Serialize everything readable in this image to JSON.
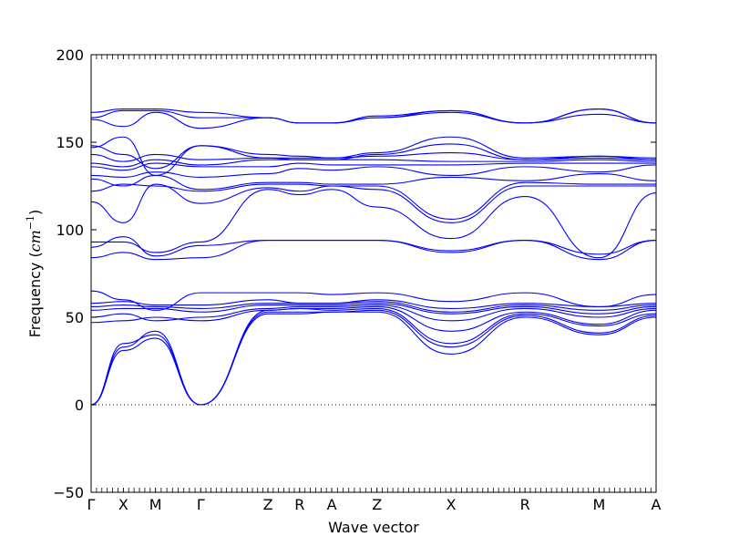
{
  "chart_data": {
    "type": "line",
    "xlabel": "Wave vector",
    "ylabel_text": "Frequency (",
    "ylabel_unit": "cm",
    "ylabel_exp": "−1",
    "ylabel_close": ")",
    "ylim": [
      -50,
      200
    ],
    "yticks": [
      -50,
      0,
      50,
      100,
      150,
      200
    ],
    "xlim": [
      0,
      10
    ],
    "high_symmetry_points": [
      {
        "label": "Γ",
        "x": 0
      },
      {
        "label": "X",
        "x": 0.57
      },
      {
        "label": "M",
        "x": 1.14
      },
      {
        "label": "Γ",
        "x": 1.94
      },
      {
        "label": "Z",
        "x": 3.13
      },
      {
        "label": "R",
        "x": 3.69
      },
      {
        "label": "A",
        "x": 4.26
      },
      {
        "label": "Z",
        "x": 5.06
      },
      {
        "label": "X",
        "x": 6.37
      },
      {
        "label": "R",
        "x": 7.68
      },
      {
        "label": "M",
        "x": 8.99
      },
      {
        "label": "A",
        "x": 10
      }
    ],
    "zero_line": {
      "y": 0,
      "style": "dotted"
    },
    "line_color": "#0000ff",
    "series": [
      {
        "x": [
          0,
          0.57,
          1.14,
          1.94,
          3.13,
          3.69,
          4.26,
          5.06,
          6.37,
          7.68,
          8.99,
          10
        ],
        "values": [
          0,
          35,
          40,
          0,
          52,
          52,
          53,
          53,
          29,
          50,
          40,
          50
        ]
      },
      {
        "x": [
          0,
          0.57,
          1.14,
          1.94,
          3.13,
          3.69,
          4.26,
          5.06,
          6.37,
          7.68,
          8.99,
          10
        ],
        "values": [
          0,
          31,
          38,
          0,
          53,
          53,
          53,
          54,
          33,
          51,
          41,
          51
        ]
      },
      {
        "x": [
          0,
          0.57,
          1.14,
          1.94,
          3.13,
          3.69,
          4.26,
          5.06,
          6.37,
          7.68,
          8.99,
          10
        ],
        "values": [
          0,
          33,
          42,
          0,
          54,
          55,
          54,
          55,
          35,
          52,
          45,
          52
        ]
      },
      {
        "x": [
          0,
          0.57,
          1.14,
          1.94,
          3.13,
          3.69,
          4.26,
          5.06,
          6.37,
          7.68,
          8.99,
          10
        ],
        "values": [
          47,
          48,
          50,
          48,
          54,
          55,
          55,
          56,
          42,
          53,
          46,
          54
        ]
      },
      {
        "x": [
          0,
          0.57,
          1.14,
          1.94,
          3.13,
          3.69,
          4.26,
          5.06,
          6.37,
          7.68,
          8.99,
          10
        ],
        "values": [
          50,
          52,
          48,
          50,
          55,
          56,
          56,
          57,
          48,
          55,
          50,
          55
        ]
      },
      {
        "x": [
          0,
          0.57,
          1.14,
          1.94,
          3.13,
          3.69,
          4.26,
          5.06,
          6.37,
          7.68,
          8.99,
          10
        ],
        "values": [
          54,
          55,
          55,
          53,
          57,
          57,
          57,
          58,
          52,
          56,
          52,
          56
        ]
      },
      {
        "x": [
          0,
          0.57,
          1.14,
          1.94,
          3.13,
          3.69,
          4.26,
          5.06,
          6.37,
          7.68,
          8.99,
          10
        ],
        "values": [
          56,
          57,
          56,
          55,
          58,
          58,
          58,
          59,
          53,
          57,
          54,
          57
        ]
      },
      {
        "x": [
          0,
          0.57,
          1.14,
          1.94,
          3.13,
          3.69,
          4.26,
          5.06,
          6.37,
          7.68,
          8.99,
          10
        ],
        "values": [
          58,
          59,
          57,
          57,
          60,
          58,
          58,
          60,
          55,
          58,
          56,
          58
        ]
      },
      {
        "x": [
          0,
          0.57,
          1.14,
          1.94,
          3.13,
          3.69,
          4.26,
          5.06,
          6.37,
          7.68,
          8.99,
          10
        ],
        "values": [
          65,
          60,
          54,
          64,
          64,
          64,
          63,
          64,
          59,
          64,
          56,
          63
        ]
      },
      {
        "x": [
          0,
          0.57,
          1.14,
          1.94,
          3.13,
          3.69,
          4.26,
          5.06,
          6.37,
          7.68,
          8.99,
          10
        ],
        "values": [
          84,
          87,
          83,
          84,
          94,
          94,
          94,
          94,
          87,
          94,
          83,
          94
        ]
      },
      {
        "x": [
          0,
          0.57,
          1.14,
          1.94,
          3.13,
          3.69,
          4.26,
          5.06,
          6.37,
          7.68,
          8.99,
          10
        ],
        "values": [
          90,
          96,
          85,
          91,
          94,
          94,
          94,
          94,
          88,
          94,
          86,
          94
        ]
      },
      {
        "x": [
          0,
          0.57,
          1.14,
          1.94,
          3.13,
          3.69,
          4.26,
          5.06,
          6.37,
          7.68,
          8.99,
          10
        ],
        "values": [
          93,
          93,
          87,
          93,
          123,
          120,
          123,
          113,
          95,
          119,
          84,
          121
        ]
      },
      {
        "x": [
          0,
          0.57,
          1.14,
          1.94,
          3.13,
          3.69,
          4.26,
          5.06,
          6.37,
          7.68,
          8.99,
          10
        ],
        "values": [
          116,
          104,
          126,
          115,
          124,
          122,
          125,
          123,
          104,
          125,
          125,
          125
        ]
      },
      {
        "x": [
          0,
          0.57,
          1.14,
          1.94,
          3.13,
          3.69,
          4.26,
          5.06,
          6.37,
          7.68,
          8.99,
          10
        ],
        "values": [
          122,
          126,
          125,
          122,
          126,
          126,
          125,
          125,
          106,
          127,
          126,
          126
        ]
      },
      {
        "x": [
          0,
          0.57,
          1.14,
          1.94,
          3.13,
          3.69,
          4.26,
          5.06,
          6.37,
          7.68,
          8.99,
          10
        ],
        "values": [
          129,
          125,
          131,
          123,
          127,
          127,
          126,
          126,
          130,
          128,
          132,
          128
        ]
      },
      {
        "x": [
          0,
          0.57,
          1.14,
          1.94,
          3.13,
          3.69,
          4.26,
          5.06,
          6.37,
          7.68,
          8.99,
          10
        ],
        "values": [
          131,
          130,
          133,
          130,
          132,
          135,
          134,
          136,
          131,
          136,
          133,
          137
        ]
      },
      {
        "x": [
          0,
          0.57,
          1.14,
          1.94,
          3.13,
          3.69,
          4.26,
          5.06,
          6.37,
          7.68,
          8.99,
          10
        ],
        "values": [
          136,
          134,
          138,
          136,
          136,
          138,
          137,
          137,
          137,
          138,
          138,
          138
        ]
      },
      {
        "x": [
          0,
          0.57,
          1.14,
          1.94,
          3.13,
          3.69,
          4.26,
          5.06,
          6.37,
          7.68,
          8.99,
          10
        ],
        "values": [
          138,
          136,
          140,
          137,
          140,
          140,
          140,
          140,
          139,
          139,
          140,
          139
        ]
      },
      {
        "x": [
          0,
          0.57,
          1.14,
          1.94,
          3.13,
          3.69,
          4.26,
          5.06,
          6.37,
          7.68,
          8.99,
          10
        ],
        "values": [
          143,
          139,
          143,
          140,
          141,
          141,
          141,
          142,
          144,
          140,
          142,
          140
        ]
      },
      {
        "x": [
          0,
          0.57,
          1.14,
          1.94,
          3.13,
          3.69,
          4.26,
          5.06,
          6.37,
          7.68,
          8.99,
          10
        ],
        "values": [
          147,
          153,
          131,
          148,
          141,
          140,
          140,
          143,
          149,
          140,
          141,
          140
        ]
      },
      {
        "x": [
          0,
          0.57,
          1.14,
          1.94,
          3.13,
          3.69,
          4.26,
          5.06,
          6.37,
          7.68,
          8.99,
          10
        ],
        "values": [
          148,
          143,
          135,
          148,
          143,
          142,
          141,
          144,
          153,
          141,
          142,
          141
        ]
      },
      {
        "x": [
          0,
          0.57,
          1.14,
          1.94,
          3.13,
          3.69,
          4.26,
          5.06,
          6.37,
          7.68,
          8.99,
          10
        ],
        "values": [
          163,
          159,
          167,
          158,
          164,
          161,
          161,
          164,
          167,
          161,
          166,
          161
        ]
      },
      {
        "x": [
          0,
          0.57,
          1.14,
          1.94,
          3.13,
          3.69,
          4.26,
          5.06,
          6.37,
          7.68,
          8.99,
          10
        ],
        "values": [
          164,
          168,
          168,
          164,
          164,
          161,
          161,
          164,
          168,
          161,
          169,
          161
        ]
      },
      {
        "x": [
          0,
          0.57,
          1.14,
          1.94,
          3.13,
          3.69,
          4.26,
          5.06,
          6.37,
          7.68,
          8.99,
          10
        ],
        "values": [
          167,
          169,
          169,
          167,
          164,
          161,
          161,
          165,
          168,
          161,
          169,
          161
        ]
      }
    ]
  }
}
